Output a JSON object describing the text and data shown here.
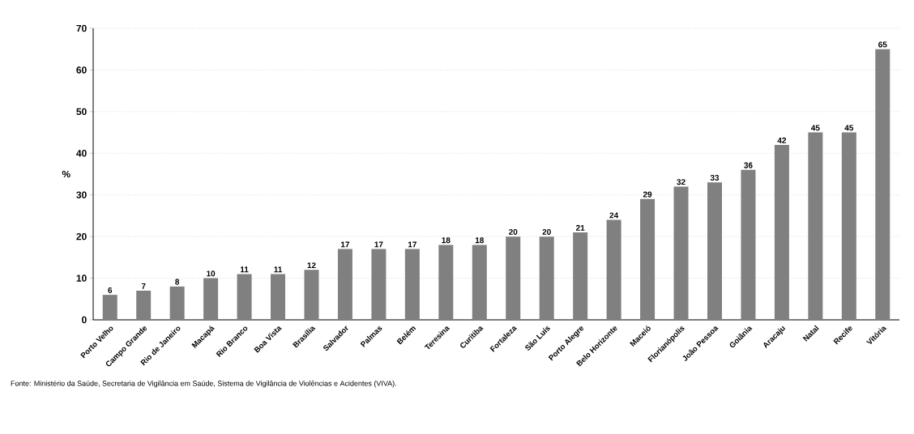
{
  "chart_data": {
    "type": "bar",
    "ylabel": "%",
    "categories": [
      "Porto Velho",
      "Campo Grande",
      "Rio de Janeiro",
      "Macapá",
      "Rio Branco",
      "Boa Vista",
      "Brasília",
      "Salvador",
      "Palmas",
      "Belém",
      "Teresina",
      "Curitiba",
      "Fortaleza",
      "São Luís",
      "Porto Alegre",
      "Belo Horizonte",
      "Maceió",
      "Florianópolis",
      "João Pessoa",
      "Goiânia",
      "Aracaju",
      "Natal",
      "Recife",
      "Vitória"
    ],
    "values": [
      6,
      7,
      8,
      10,
      11,
      11,
      12,
      17,
      17,
      17,
      18,
      18,
      20,
      20,
      21,
      24,
      29,
      32,
      33,
      36,
      42,
      45,
      45,
      65
    ],
    "color": "#808080",
    "ylim": [
      0,
      70
    ],
    "yticks": [
      0,
      10,
      20,
      30,
      40,
      50,
      60,
      70
    ],
    "grid": "y",
    "data_labels": true,
    "annotations": [
      "Fonte: Ministério da Saúde, Secretaria de Vigilância em Saúde, Sistema de Vigilância de Violências e Acidentes (VIVA)."
    ]
  }
}
